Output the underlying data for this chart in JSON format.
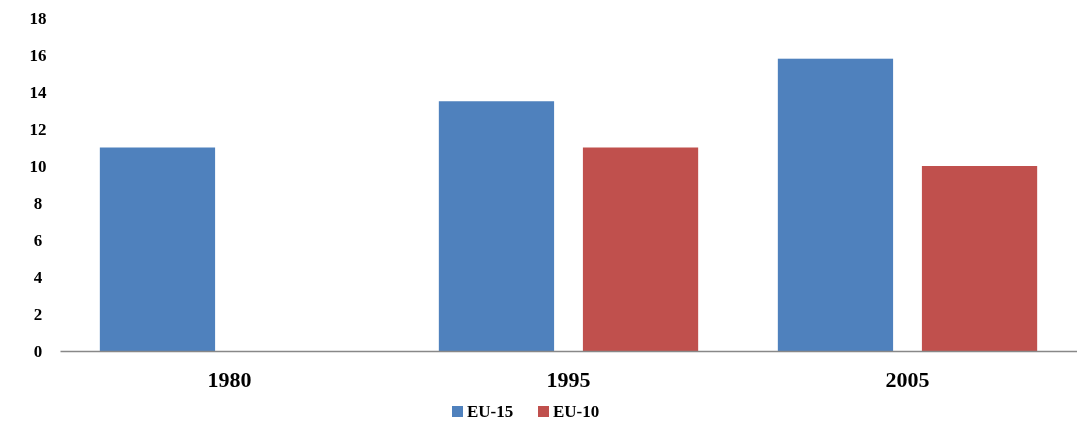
{
  "chart_data": {
    "type": "bar",
    "categories": [
      "1980",
      "1995",
      "2005"
    ],
    "series": [
      {
        "name": "EU-15",
        "color": "#4f81bd",
        "values": [
          11,
          13.5,
          15.8
        ]
      },
      {
        "name": "EU-10",
        "color": "#c0504d",
        "values": [
          null,
          11,
          10
        ]
      }
    ],
    "ylim": [
      0,
      18
    ],
    "yticks": [
      0,
      2,
      4,
      6,
      8,
      10,
      12,
      14,
      16,
      18
    ],
    "grid": false,
    "legend": "bottom"
  }
}
